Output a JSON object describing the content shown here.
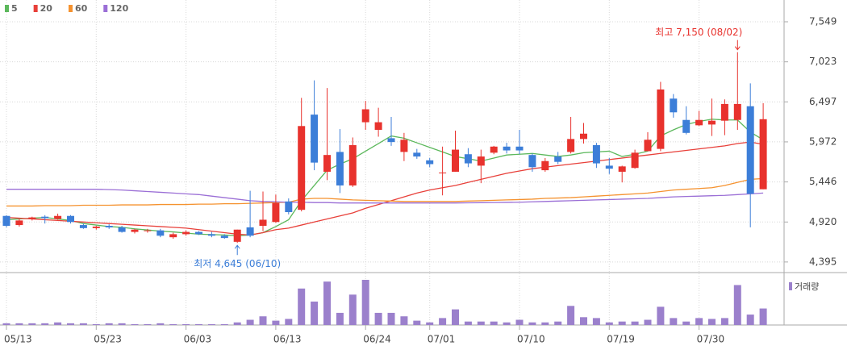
{
  "chart_data": {
    "type": "candlestick",
    "categories": [
      "05/13",
      null,
      null,
      null,
      null,
      null,
      null,
      "05/23",
      null,
      null,
      null,
      null,
      null,
      null,
      "06/03",
      null,
      null,
      null,
      null,
      null,
      null,
      "06/13",
      null,
      null,
      null,
      null,
      null,
      null,
      "06/24",
      null,
      null,
      null,
      null,
      "07/01",
      null,
      null,
      null,
      null,
      null,
      null,
      "07/10",
      null,
      null,
      null,
      null,
      null,
      null,
      "07/19",
      null,
      null,
      null,
      null,
      null,
      null,
      "07/30",
      null,
      null,
      null,
      null,
      null
    ],
    "open": [
      5000,
      4880,
      4960,
      4990,
      4960,
      5000,
      4880,
      4840,
      4870,
      4850,
      4790,
      4800,
      4810,
      4720,
      4760,
      4790,
      4760,
      4740,
      4660,
      4850,
      4870,
      4920,
      5190,
      5080,
      6330,
      5580,
      5840,
      5400,
      6230,
      6130,
      6020,
      5840,
      5830,
      5730,
      5560,
      5580,
      5810,
      5660,
      5830,
      5910,
      5910,
      5800,
      5600,
      5780,
      5840,
      6010,
      5930,
      5660,
      5580,
      5630,
      5850,
      5880,
      6540,
      6260,
      6190,
      6200,
      6250,
      6260,
      6440,
      5350
    ],
    "high": [
      5010,
      4960,
      4990,
      5010,
      5030,
      5010,
      4900,
      4870,
      4890,
      4870,
      4830,
      4830,
      4830,
      4780,
      4810,
      4800,
      4790,
      4760,
      4820,
      5330,
      5320,
      5280,
      5230,
      6550,
      6780,
      6680,
      6140,
      6030,
      6510,
      6420,
      6300,
      6090,
      5880,
      5760,
      5910,
      6120,
      5890,
      5870,
      5920,
      5960,
      6130,
      5820,
      5760,
      5840,
      6300,
      6220,
      5960,
      5760,
      5660,
      5870,
      6100,
      6760,
      6600,
      6440,
      6380,
      6540,
      6530,
      7150,
      6740,
      6480
    ],
    "low": [
      4850,
      4860,
      4940,
      4900,
      4950,
      4900,
      4830,
      4820,
      4830,
      4780,
      4770,
      4780,
      4720,
      4700,
      4740,
      4750,
      4720,
      4700,
      4645,
      4720,
      4800,
      4910,
      5020,
      5060,
      5600,
      5470,
      5300,
      5380,
      6130,
      6040,
      5920,
      5720,
      5750,
      5640,
      5270,
      5580,
      5640,
      5430,
      5810,
      5820,
      5810,
      5580,
      5580,
      5680,
      5820,
      5950,
      5630,
      5550,
      5440,
      5620,
      5850,
      5850,
      6290,
      6070,
      6180,
      6050,
      6060,
      6130,
      4850,
      5350
    ],
    "close": [
      4870,
      4940,
      4980,
      4970,
      5000,
      4920,
      4840,
      4860,
      4850,
      4790,
      4820,
      4810,
      4740,
      4760,
      4790,
      4760,
      4740,
      4710,
      4820,
      4740,
      4950,
      5170,
      5050,
      6180,
      5700,
      5800,
      5400,
      5930,
      6400,
      6230,
      5970,
      6000,
      5780,
      5680,
      5570,
      5870,
      5690,
      5780,
      5910,
      5860,
      5860,
      5640,
      5720,
      5710,
      6010,
      6080,
      5690,
      5620,
      5650,
      5830,
      6000,
      6660,
      6360,
      6090,
      6260,
      6250,
      6470,
      6470,
      5290,
      6270
    ],
    "up_color": "#e8322d",
    "down_color": "#3c7ed8",
    "series": [
      {
        "name": "5",
        "color": "#5cb85c",
        "values": [
          4950,
          4960,
          4970,
          4980,
          4960,
          4940,
          4900,
          4880,
          4860,
          4850,
          4830,
          4815,
          4800,
          4790,
          4775,
          4760,
          4755,
          4750,
          4740,
          4750,
          4780,
          4860,
          4950,
          5200,
          5400,
          5600,
          5680,
          5750,
          5850,
          5950,
          6050,
          6020,
          5960,
          5900,
          5840,
          5780,
          5750,
          5720,
          5760,
          5800,
          5810,
          5820,
          5800,
          5780,
          5800,
          5830,
          5840,
          5850,
          5780,
          5810,
          5850,
          6050,
          6130,
          6200,
          6240,
          6270,
          6260,
          6260,
          6100,
          6000
        ]
      },
      {
        "name": "20",
        "color": "#e8403a",
        "values": [
          4980,
          4970,
          4960,
          4950,
          4940,
          4930,
          4920,
          4910,
          4900,
          4890,
          4880,
          4870,
          4860,
          4850,
          4840,
          4820,
          4800,
          4780,
          4760,
          4750,
          4780,
          4820,
          4840,
          4880,
          4920,
          4960,
          5000,
          5040,
          5100,
          5150,
          5200,
          5250,
          5300,
          5340,
          5370,
          5400,
          5440,
          5480,
          5520,
          5560,
          5590,
          5620,
          5640,
          5660,
          5680,
          5700,
          5720,
          5740,
          5760,
          5780,
          5800,
          5820,
          5840,
          5860,
          5880,
          5900,
          5920,
          5950,
          5970,
          5940
        ]
      },
      {
        "name": "60",
        "color": "#f5922f",
        "values": [
          5130,
          5130,
          5130,
          5135,
          5135,
          5135,
          5140,
          5140,
          5140,
          5145,
          5145,
          5145,
          5150,
          5150,
          5150,
          5155,
          5155,
          5160,
          5160,
          5165,
          5170,
          5175,
          5180,
          5220,
          5230,
          5230,
          5220,
          5210,
          5205,
          5200,
          5195,
          5190,
          5190,
          5190,
          5190,
          5190,
          5195,
          5200,
          5205,
          5210,
          5215,
          5220,
          5230,
          5235,
          5240,
          5250,
          5260,
          5270,
          5280,
          5290,
          5300,
          5320,
          5340,
          5350,
          5360,
          5370,
          5400,
          5440,
          5480,
          5490
        ]
      },
      {
        "name": "120",
        "color": "#9b6fd6",
        "values": [
          5350,
          5350,
          5350,
          5350,
          5350,
          5350,
          5350,
          5350,
          5345,
          5340,
          5330,
          5320,
          5310,
          5300,
          5290,
          5280,
          5260,
          5240,
          5220,
          5200,
          5190,
          5185,
          5180,
          5180,
          5175,
          5175,
          5170,
          5170,
          5170,
          5170,
          5170,
          5170,
          5170,
          5170,
          5170,
          5170,
          5172,
          5174,
          5176,
          5178,
          5180,
          5185,
          5190,
          5195,
          5200,
          5205,
          5210,
          5215,
          5220,
          5225,
          5230,
          5240,
          5250,
          5255,
          5260,
          5265,
          5270,
          5280,
          5290,
          5300
        ]
      }
    ],
    "volume": [
      2,
      2,
      2,
      2,
      3,
      2,
      2,
      1,
      2,
      2,
      1,
      1,
      2,
      1,
      1,
      1,
      1,
      1,
      3,
      6,
      10,
      5,
      7,
      42,
      27,
      50,
      14,
      35,
      52,
      14,
      14,
      10,
      5,
      3,
      8,
      18,
      4,
      4,
      4,
      3,
      6,
      3,
      3,
      4,
      22,
      9,
      8,
      3,
      4,
      4,
      6,
      21,
      8,
      4,
      8,
      7,
      8,
      46,
      12,
      19
    ],
    "volume_color": "#9b80cc",
    "volume_label": "거래량",
    "ylim": [
      4256,
      7729
    ],
    "yticks": [
      {
        "value": 7549,
        "label": "7,549"
      },
      {
        "value": 7023,
        "label": "7,023"
      },
      {
        "value": 6497,
        "label": "6,497"
      },
      {
        "value": 5972,
        "label": "5,972"
      },
      {
        "value": 5446,
        "label": "5,446"
      },
      {
        "value": 4920,
        "label": "4,920"
      },
      {
        "value": 4395,
        "label": "4,395"
      }
    ],
    "grid": true,
    "annotations": [
      {
        "text": "최고 7,150 (08/02)",
        "color": "#e8322d"
      },
      {
        "text": "최저 4,645 (06/10)",
        "color": "#3c7ed8"
      }
    ]
  }
}
